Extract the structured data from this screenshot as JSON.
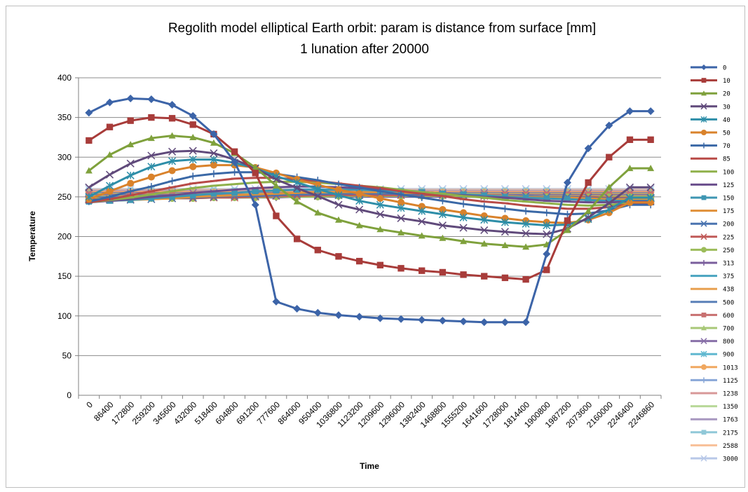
{
  "chart_data": {
    "type": "line",
    "title": "Regolith model elliptical Earth orbit: param is distance from surface [mm]",
    "subtitle": "1 lunation after 20000",
    "xlabel": "Time",
    "ylabel": "Temperature",
    "ylim": [
      0,
      400
    ],
    "yticks": [
      "0",
      "50",
      "100",
      "150",
      "200",
      "250",
      "300",
      "350",
      "400"
    ],
    "grid": "horizontal",
    "legend_position": "right",
    "categories": [
      "0",
      "86400",
      "172800",
      "259200",
      "345600",
      "432000",
      "518400",
      "604800",
      "691200",
      "777600",
      "864000",
      "950400",
      "1036800",
      "1123200",
      "1209600",
      "1296000",
      "1382400",
      "1468800",
      "1555200",
      "1641600",
      "1728000",
      "1814400",
      "1900800",
      "1987200",
      "2073600",
      "2160000",
      "2246400",
      "2246860"
    ],
    "series": [
      {
        "name": "0",
        "color": "#3c64a8",
        "marker": "diamond",
        "values": [
          356,
          369,
          374,
          373,
          366,
          352,
          329,
          294,
          240,
          118,
          109,
          104,
          101,
          99,
          97,
          96,
          95,
          94,
          93,
          92,
          92,
          92,
          178,
          268,
          311,
          340,
          358,
          358
        ]
      },
      {
        "name": "10",
        "color": "#a83c3a",
        "marker": "square",
        "values": [
          321,
          338,
          346,
          350,
          349,
          341,
          329,
          307,
          280,
          226,
          197,
          183,
          175,
          169,
          164,
          160,
          157,
          155,
          152,
          150,
          148,
          146,
          158,
          220,
          268,
          300,
          322,
          322
        ]
      },
      {
        "name": "20",
        "color": "#7fa13c",
        "marker": "triangle",
        "values": [
          283,
          303,
          316,
          324,
          327,
          325,
          318,
          305,
          287,
          264,
          244,
          230,
          221,
          214,
          209,
          205,
          201,
          198,
          194,
          191,
          189,
          187,
          190,
          208,
          232,
          262,
          286,
          286
        ]
      },
      {
        "name": "30",
        "color": "#604a7b",
        "marker": "x",
        "values": [
          262,
          278,
          292,
          302,
          307,
          308,
          305,
          297,
          286,
          272,
          261,
          251,
          240,
          234,
          228,
          223,
          219,
          214,
          211,
          208,
          206,
          204,
          203,
          210,
          224,
          242,
          262,
          262
        ]
      },
      {
        "name": "40",
        "color": "#2e8ea8",
        "marker": "star",
        "values": [
          250,
          264,
          277,
          288,
          295,
          297,
          297,
          293,
          286,
          276,
          268,
          260,
          252,
          245,
          240,
          236,
          232,
          228,
          224,
          221,
          218,
          216,
          214,
          215,
          222,
          234,
          249,
          249
        ]
      },
      {
        "name": "50",
        "color": "#d9822b",
        "marker": "circle",
        "values": [
          247,
          257,
          267,
          275,
          283,
          288,
          290,
          290,
          287,
          280,
          272,
          265,
          259,
          254,
          248,
          243,
          238,
          234,
          230,
          226,
          223,
          220,
          218,
          217,
          221,
          230,
          243,
          243
        ]
      },
      {
        "name": "70",
        "color": "#3a68a6",
        "marker": "plus",
        "values": [
          244,
          250,
          257,
          263,
          270,
          276,
          279,
          281,
          281,
          279,
          275,
          271,
          266,
          262,
          257,
          253,
          249,
          245,
          241,
          238,
          235,
          232,
          230,
          228,
          229,
          233,
          240,
          240
        ]
      },
      {
        "name": "85",
        "color": "#b84a47",
        "marker": "dash",
        "values": [
          243,
          247,
          252,
          257,
          262,
          267,
          270,
          273,
          274,
          274,
          272,
          270,
          267,
          264,
          261,
          257,
          254,
          251,
          247,
          244,
          242,
          239,
          237,
          235,
          235,
          237,
          241,
          241
        ]
      },
      {
        "name": "100",
        "color": "#8fb04a",
        "marker": "dash",
        "values": [
          243,
          246,
          249,
          253,
          257,
          261,
          264,
          266,
          268,
          269,
          269,
          268,
          266,
          264,
          262,
          259,
          256,
          254,
          251,
          249,
          246,
          244,
          242,
          240,
          239,
          240,
          242,
          242
        ]
      },
      {
        "name": "125",
        "color": "#6a4e8c",
        "marker": "dash",
        "values": [
          243,
          245,
          247,
          250,
          252,
          255,
          257,
          259,
          261,
          262,
          263,
          263,
          262,
          261,
          260,
          258,
          256,
          254,
          252,
          250,
          249,
          247,
          245,
          244,
          243,
          243,
          244,
          244
        ]
      },
      {
        "name": "150",
        "color": "#3e96b2",
        "marker": "square",
        "values": [
          244,
          245,
          246,
          248,
          250,
          252,
          254,
          255,
          257,
          258,
          259,
          259,
          259,
          259,
          258,
          257,
          256,
          254,
          253,
          252,
          250,
          249,
          248,
          247,
          246,
          245,
          245,
          245
        ]
      },
      {
        "name": "175",
        "color": "#e0913a",
        "marker": "dash",
        "values": [
          245,
          245,
          246,
          247,
          248,
          250,
          251,
          252,
          253,
          254,
          255,
          256,
          256,
          256,
          256,
          255,
          255,
          254,
          253,
          252,
          251,
          250,
          249,
          249,
          248,
          247,
          247,
          247
        ]
      },
      {
        "name": "200",
        "color": "#4a74b0",
        "marker": "x",
        "values": [
          246,
          246,
          246,
          247,
          248,
          249,
          250,
          251,
          251,
          252,
          253,
          253,
          254,
          254,
          254,
          254,
          253,
          253,
          252,
          252,
          251,
          251,
          250,
          250,
          249,
          248,
          248,
          248
        ]
      },
      {
        "name": "225",
        "color": "#c05a58",
        "marker": "x",
        "values": [
          247,
          247,
          247,
          247,
          248,
          248,
          249,
          249,
          250,
          251,
          251,
          252,
          252,
          252,
          252,
          252,
          252,
          252,
          252,
          251,
          251,
          251,
          250,
          250,
          250,
          249,
          249,
          249
        ]
      },
      {
        "name": "250",
        "color": "#9cbc5a",
        "marker": "circle",
        "values": [
          248,
          248,
          248,
          248,
          248,
          248,
          249,
          249,
          249,
          250,
          250,
          250,
          251,
          251,
          251,
          251,
          251,
          251,
          251,
          251,
          250,
          250,
          250,
          250,
          250,
          250,
          250,
          250
        ]
      },
      {
        "name": "313",
        "color": "#7a5e9c",
        "marker": "plus",
        "values": [
          249,
          249,
          249,
          249,
          249,
          249,
          249,
          249,
          249,
          249,
          250,
          250,
          250,
          250,
          250,
          250,
          250,
          250,
          250,
          250,
          250,
          250,
          250,
          250,
          250,
          250,
          250,
          250
        ]
      },
      {
        "name": "375",
        "color": "#4aa4c0",
        "marker": "dash",
        "values": [
          250,
          250,
          250,
          250,
          250,
          250,
          250,
          250,
          250,
          250,
          250,
          250,
          250,
          250,
          250,
          250,
          250,
          250,
          250,
          250,
          250,
          250,
          250,
          250,
          250,
          250,
          250,
          250
        ]
      },
      {
        "name": "438",
        "color": "#e8a050",
        "marker": "dash",
        "values": [
          251,
          251,
          251,
          251,
          251,
          251,
          251,
          251,
          251,
          251,
          251,
          251,
          251,
          251,
          251,
          251,
          251,
          251,
          251,
          251,
          251,
          251,
          251,
          251,
          251,
          251,
          251,
          251
        ]
      },
      {
        "name": "500",
        "color": "#5a80b8",
        "marker": "dash",
        "values": [
          252,
          252,
          252,
          252,
          252,
          252,
          252,
          252,
          252,
          252,
          252,
          252,
          252,
          252,
          252,
          252,
          252,
          252,
          252,
          252,
          252,
          252,
          252,
          252,
          252,
          252,
          252,
          252
        ]
      },
      {
        "name": "600",
        "color": "#c87070",
        "marker": "square",
        "values": [
          253,
          253,
          253,
          253,
          253,
          253,
          253,
          253,
          253,
          253,
          253,
          253,
          253,
          253,
          253,
          253,
          253,
          253,
          253,
          253,
          253,
          253,
          253,
          253,
          253,
          253,
          253,
          253
        ]
      },
      {
        "name": "700",
        "color": "#a8c878",
        "marker": "triangle",
        "values": [
          254,
          254,
          254,
          254,
          254,
          254,
          254,
          254,
          254,
          254,
          254,
          254,
          254,
          254,
          254,
          254,
          254,
          254,
          254,
          254,
          254,
          254,
          254,
          254,
          254,
          254,
          254,
          254
        ]
      },
      {
        "name": "800",
        "color": "#8870a8",
        "marker": "x",
        "values": [
          255,
          255,
          255,
          255,
          255,
          255,
          255,
          255,
          255,
          255,
          255,
          255,
          255,
          255,
          255,
          255,
          255,
          255,
          255,
          255,
          255,
          255,
          255,
          255,
          255,
          255,
          255,
          255
        ]
      },
      {
        "name": "900",
        "color": "#60b8d0",
        "marker": "star",
        "values": [
          255,
          255,
          255,
          255,
          255,
          255,
          255,
          255,
          255,
          255,
          255,
          255,
          255,
          255,
          255,
          255,
          255,
          255,
          255,
          255,
          255,
          255,
          255,
          255,
          255,
          255,
          255,
          255
        ]
      },
      {
        "name": "1013",
        "color": "#f0a860",
        "marker": "circle",
        "values": [
          256,
          256,
          256,
          256,
          256,
          256,
          256,
          256,
          256,
          256,
          256,
          256,
          256,
          256,
          256,
          256,
          256,
          256,
          256,
          256,
          256,
          256,
          256,
          256,
          256,
          256,
          256,
          256
        ]
      },
      {
        "name": "1125",
        "color": "#8aa8d8",
        "marker": "plus",
        "values": [
          256,
          256,
          256,
          256,
          256,
          256,
          256,
          256,
          256,
          256,
          256,
          256,
          256,
          256,
          256,
          256,
          256,
          256,
          256,
          256,
          256,
          256,
          256,
          256,
          256,
          256,
          256,
          256
        ]
      },
      {
        "name": "1238",
        "color": "#d89898",
        "marker": "dash",
        "values": [
          257,
          257,
          257,
          257,
          257,
          257,
          257,
          257,
          257,
          257,
          257,
          257,
          257,
          257,
          257,
          257,
          257,
          257,
          257,
          257,
          257,
          257,
          257,
          257,
          257,
          257,
          257,
          257
        ]
      },
      {
        "name": "1350",
        "color": "#b8d898",
        "marker": "dash",
        "values": [
          257,
          257,
          257,
          257,
          257,
          257,
          257,
          257,
          257,
          257,
          257,
          257,
          257,
          257,
          257,
          257,
          257,
          257,
          257,
          257,
          257,
          257,
          257,
          257,
          257,
          257,
          257,
          257
        ]
      },
      {
        "name": "1763",
        "color": "#a898c0",
        "marker": "dash",
        "values": [
          258,
          258,
          258,
          258,
          258,
          258,
          258,
          258,
          258,
          258,
          258,
          258,
          258,
          258,
          258,
          258,
          258,
          258,
          258,
          258,
          258,
          258,
          258,
          258,
          258,
          258,
          258,
          258
        ]
      },
      {
        "name": "2175",
        "color": "#90c8d8",
        "marker": "square",
        "values": [
          258,
          258,
          258,
          258,
          258,
          258,
          258,
          258,
          258,
          258,
          258,
          258,
          258,
          258,
          258,
          258,
          258,
          258,
          258,
          258,
          258,
          258,
          258,
          258,
          258,
          258,
          258,
          258
        ]
      },
      {
        "name": "2588",
        "color": "#f8c098",
        "marker": "dash",
        "values": [
          259,
          259,
          259,
          259,
          259,
          259,
          259,
          259,
          259,
          259,
          259,
          259,
          259,
          259,
          259,
          259,
          259,
          259,
          259,
          259,
          259,
          259,
          259,
          259,
          259,
          259,
          259,
          259
        ]
      },
      {
        "name": "3000",
        "color": "#b8c8e8",
        "marker": "x",
        "values": [
          260,
          260,
          260,
          260,
          260,
          260,
          260,
          260,
          260,
          260,
          260,
          260,
          260,
          260,
          260,
          260,
          260,
          260,
          260,
          260,
          260,
          260,
          260,
          260,
          260,
          260,
          260,
          260
        ]
      }
    ]
  }
}
